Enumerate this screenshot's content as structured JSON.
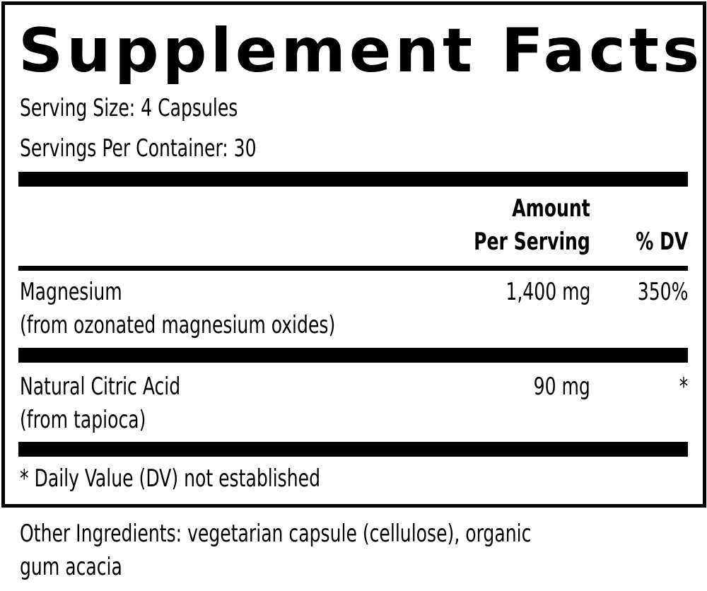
{
  "title": "Supplement Facts",
  "serving_size": "Serving Size: 4 Capsules",
  "servings_per_container": "Servings Per Container: 30",
  "header": {
    "amount_line1": "Amount",
    "amount_line2": "Per Serving",
    "dv": "% DV"
  },
  "rows": [
    {
      "name": "Magnesium",
      "source": "(from ozonated magnesium oxides)",
      "amount": "1,400 mg",
      "dv": "350%"
    },
    {
      "name": "Natural Citric Acid",
      "source": "(from tapioca)",
      "amount": "90 mg",
      "dv": "*"
    }
  ],
  "footnote": "* Daily Value (DV) not established",
  "other_ingredients_line1": "Other Ingredients: vegetarian capsule (cellulose), organic",
  "other_ingredients_line2": "gum acacia"
}
